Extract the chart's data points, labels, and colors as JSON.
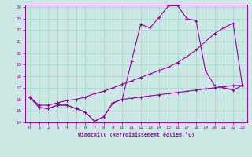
{
  "xlabel": "Windchill (Refroidissement éolien,°C)",
  "bg_color": "#cce8e4",
  "line_color": "#990099",
  "grid_color": "#a8d8d0",
  "xlim": [
    -0.5,
    23.5
  ],
  "ylim": [
    14,
    24.2
  ],
  "yticks": [
    14,
    15,
    16,
    17,
    18,
    19,
    20,
    21,
    22,
    23,
    24
  ],
  "xticks": [
    0,
    1,
    2,
    3,
    4,
    5,
    6,
    7,
    8,
    9,
    10,
    11,
    12,
    13,
    14,
    15,
    16,
    17,
    18,
    19,
    20,
    21,
    22,
    23
  ],
  "line1_x": [
    0,
    1,
    2,
    3,
    4,
    5,
    6,
    7,
    8,
    9,
    10,
    11,
    12,
    13,
    14,
    15,
    16,
    17,
    18,
    19,
    20,
    21,
    22,
    23
  ],
  "line1_y": [
    16.2,
    15.3,
    15.2,
    15.5,
    15.5,
    15.2,
    14.9,
    14.1,
    14.5,
    15.7,
    16.0,
    19.3,
    22.5,
    22.2,
    23.1,
    24.1,
    24.1,
    23.0,
    22.8,
    18.5,
    17.2,
    17.0,
    16.8,
    17.2
  ],
  "line2_x": [
    0,
    1,
    2,
    3,
    4,
    5,
    6,
    7,
    8,
    9,
    10,
    11,
    12,
    13,
    14,
    15,
    16,
    17,
    18,
    19,
    20,
    21,
    22,
    23
  ],
  "line2_y": [
    16.2,
    15.5,
    15.5,
    15.7,
    15.9,
    16.0,
    16.2,
    16.5,
    16.7,
    17.0,
    17.3,
    17.6,
    17.9,
    18.2,
    18.5,
    18.8,
    19.2,
    19.7,
    20.3,
    21.0,
    21.7,
    22.2,
    22.6,
    17.2
  ],
  "line3_x": [
    0,
    1,
    2,
    3,
    4,
    5,
    6,
    7,
    8,
    9,
    10,
    11,
    12,
    13,
    14,
    15,
    16,
    17,
    18,
    19,
    20,
    21,
    22,
    23
  ],
  "line3_y": [
    16.2,
    15.3,
    15.2,
    15.5,
    15.5,
    15.2,
    14.9,
    14.1,
    14.5,
    15.7,
    16.0,
    16.1,
    16.2,
    16.3,
    16.4,
    16.5,
    16.6,
    16.7,
    16.8,
    16.9,
    17.0,
    17.1,
    17.2,
    17.2
  ]
}
